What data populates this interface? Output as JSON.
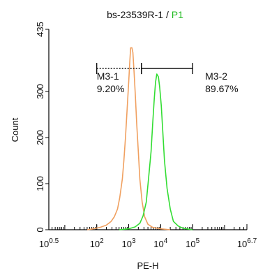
{
  "chart_data": {
    "type": "line",
    "title": {
      "sample": "bs-23539R-1",
      "separator": " / ",
      "gate": "P1",
      "gate_color": "#22bb22"
    },
    "xlabel": "PE-H",
    "ylabel": "Count",
    "x_scale": "log",
    "xlim": [
      0.5,
      6.7
    ],
    "ylim": [
      0,
      435
    ],
    "x_ticks": [
      {
        "exp": 0.5,
        "base": "10",
        "sup": "0.5"
      },
      {
        "exp": 2,
        "base": "10",
        "sup": "2"
      },
      {
        "exp": 3,
        "base": "10",
        "sup": "3"
      },
      {
        "exp": 4,
        "base": "10",
        "sup": "4"
      },
      {
        "exp": 5,
        "base": "10",
        "sup": "5"
      },
      {
        "exp": 6.7,
        "base": "10",
        "sup": "6.7"
      }
    ],
    "y_ticks": [
      {
        "value": 0,
        "label": "0"
      },
      {
        "value": 100,
        "label": "100"
      },
      {
        "value": 200,
        "label": "200"
      },
      {
        "value": 300,
        "label": "300"
      },
      {
        "value": 435,
        "label": "435"
      }
    ],
    "series": [
      {
        "color": "#f0a060",
        "points": [
          [
            1.7,
            0
          ],
          [
            1.9,
            2
          ],
          [
            2.1,
            5
          ],
          [
            2.3,
            10
          ],
          [
            2.45,
            18
          ],
          [
            2.55,
            28
          ],
          [
            2.65,
            45
          ],
          [
            2.72,
            70
          ],
          [
            2.8,
            110
          ],
          [
            2.85,
            150
          ],
          [
            2.9,
            200
          ],
          [
            2.95,
            260
          ],
          [
            3.0,
            320
          ],
          [
            3.03,
            360
          ],
          [
            3.06,
            395
          ],
          [
            3.1,
            395
          ],
          [
            3.13,
            385
          ],
          [
            3.17,
            340
          ],
          [
            3.21,
            290
          ],
          [
            3.25,
            230
          ],
          [
            3.3,
            170
          ],
          [
            3.35,
            110
          ],
          [
            3.42,
            60
          ],
          [
            3.5,
            28
          ],
          [
            3.6,
            12
          ],
          [
            3.75,
            5
          ],
          [
            4.0,
            2
          ],
          [
            4.3,
            0
          ]
        ]
      },
      {
        "color": "#33dd33",
        "points": [
          [
            2.7,
            0
          ],
          [
            3.0,
            2
          ],
          [
            3.2,
            6
          ],
          [
            3.35,
            14
          ],
          [
            3.45,
            30
          ],
          [
            3.55,
            60
          ],
          [
            3.62,
            110
          ],
          [
            3.7,
            170
          ],
          [
            3.75,
            230
          ],
          [
            3.8,
            285
          ],
          [
            3.84,
            320
          ],
          [
            3.88,
            338
          ],
          [
            3.93,
            332
          ],
          [
            3.97,
            310
          ],
          [
            4.02,
            270
          ],
          [
            4.07,
            210
          ],
          [
            4.12,
            150
          ],
          [
            4.2,
            90
          ],
          [
            4.3,
            45
          ],
          [
            4.4,
            18
          ],
          [
            4.55,
            8
          ],
          [
            4.7,
            3
          ],
          [
            5.0,
            0
          ]
        ]
      }
    ],
    "markers": [
      {
        "label": "M3-1",
        "percent": "9.20%",
        "x_start_exp": 2,
        "x_end_exp": 3.4,
        "y": 350,
        "line_style": "dashed"
      },
      {
        "label": "M3-2",
        "percent": "89.67%",
        "x_start_exp": 3.4,
        "x_end_exp": 5,
        "y": 350,
        "line_style": "solid"
      }
    ]
  }
}
